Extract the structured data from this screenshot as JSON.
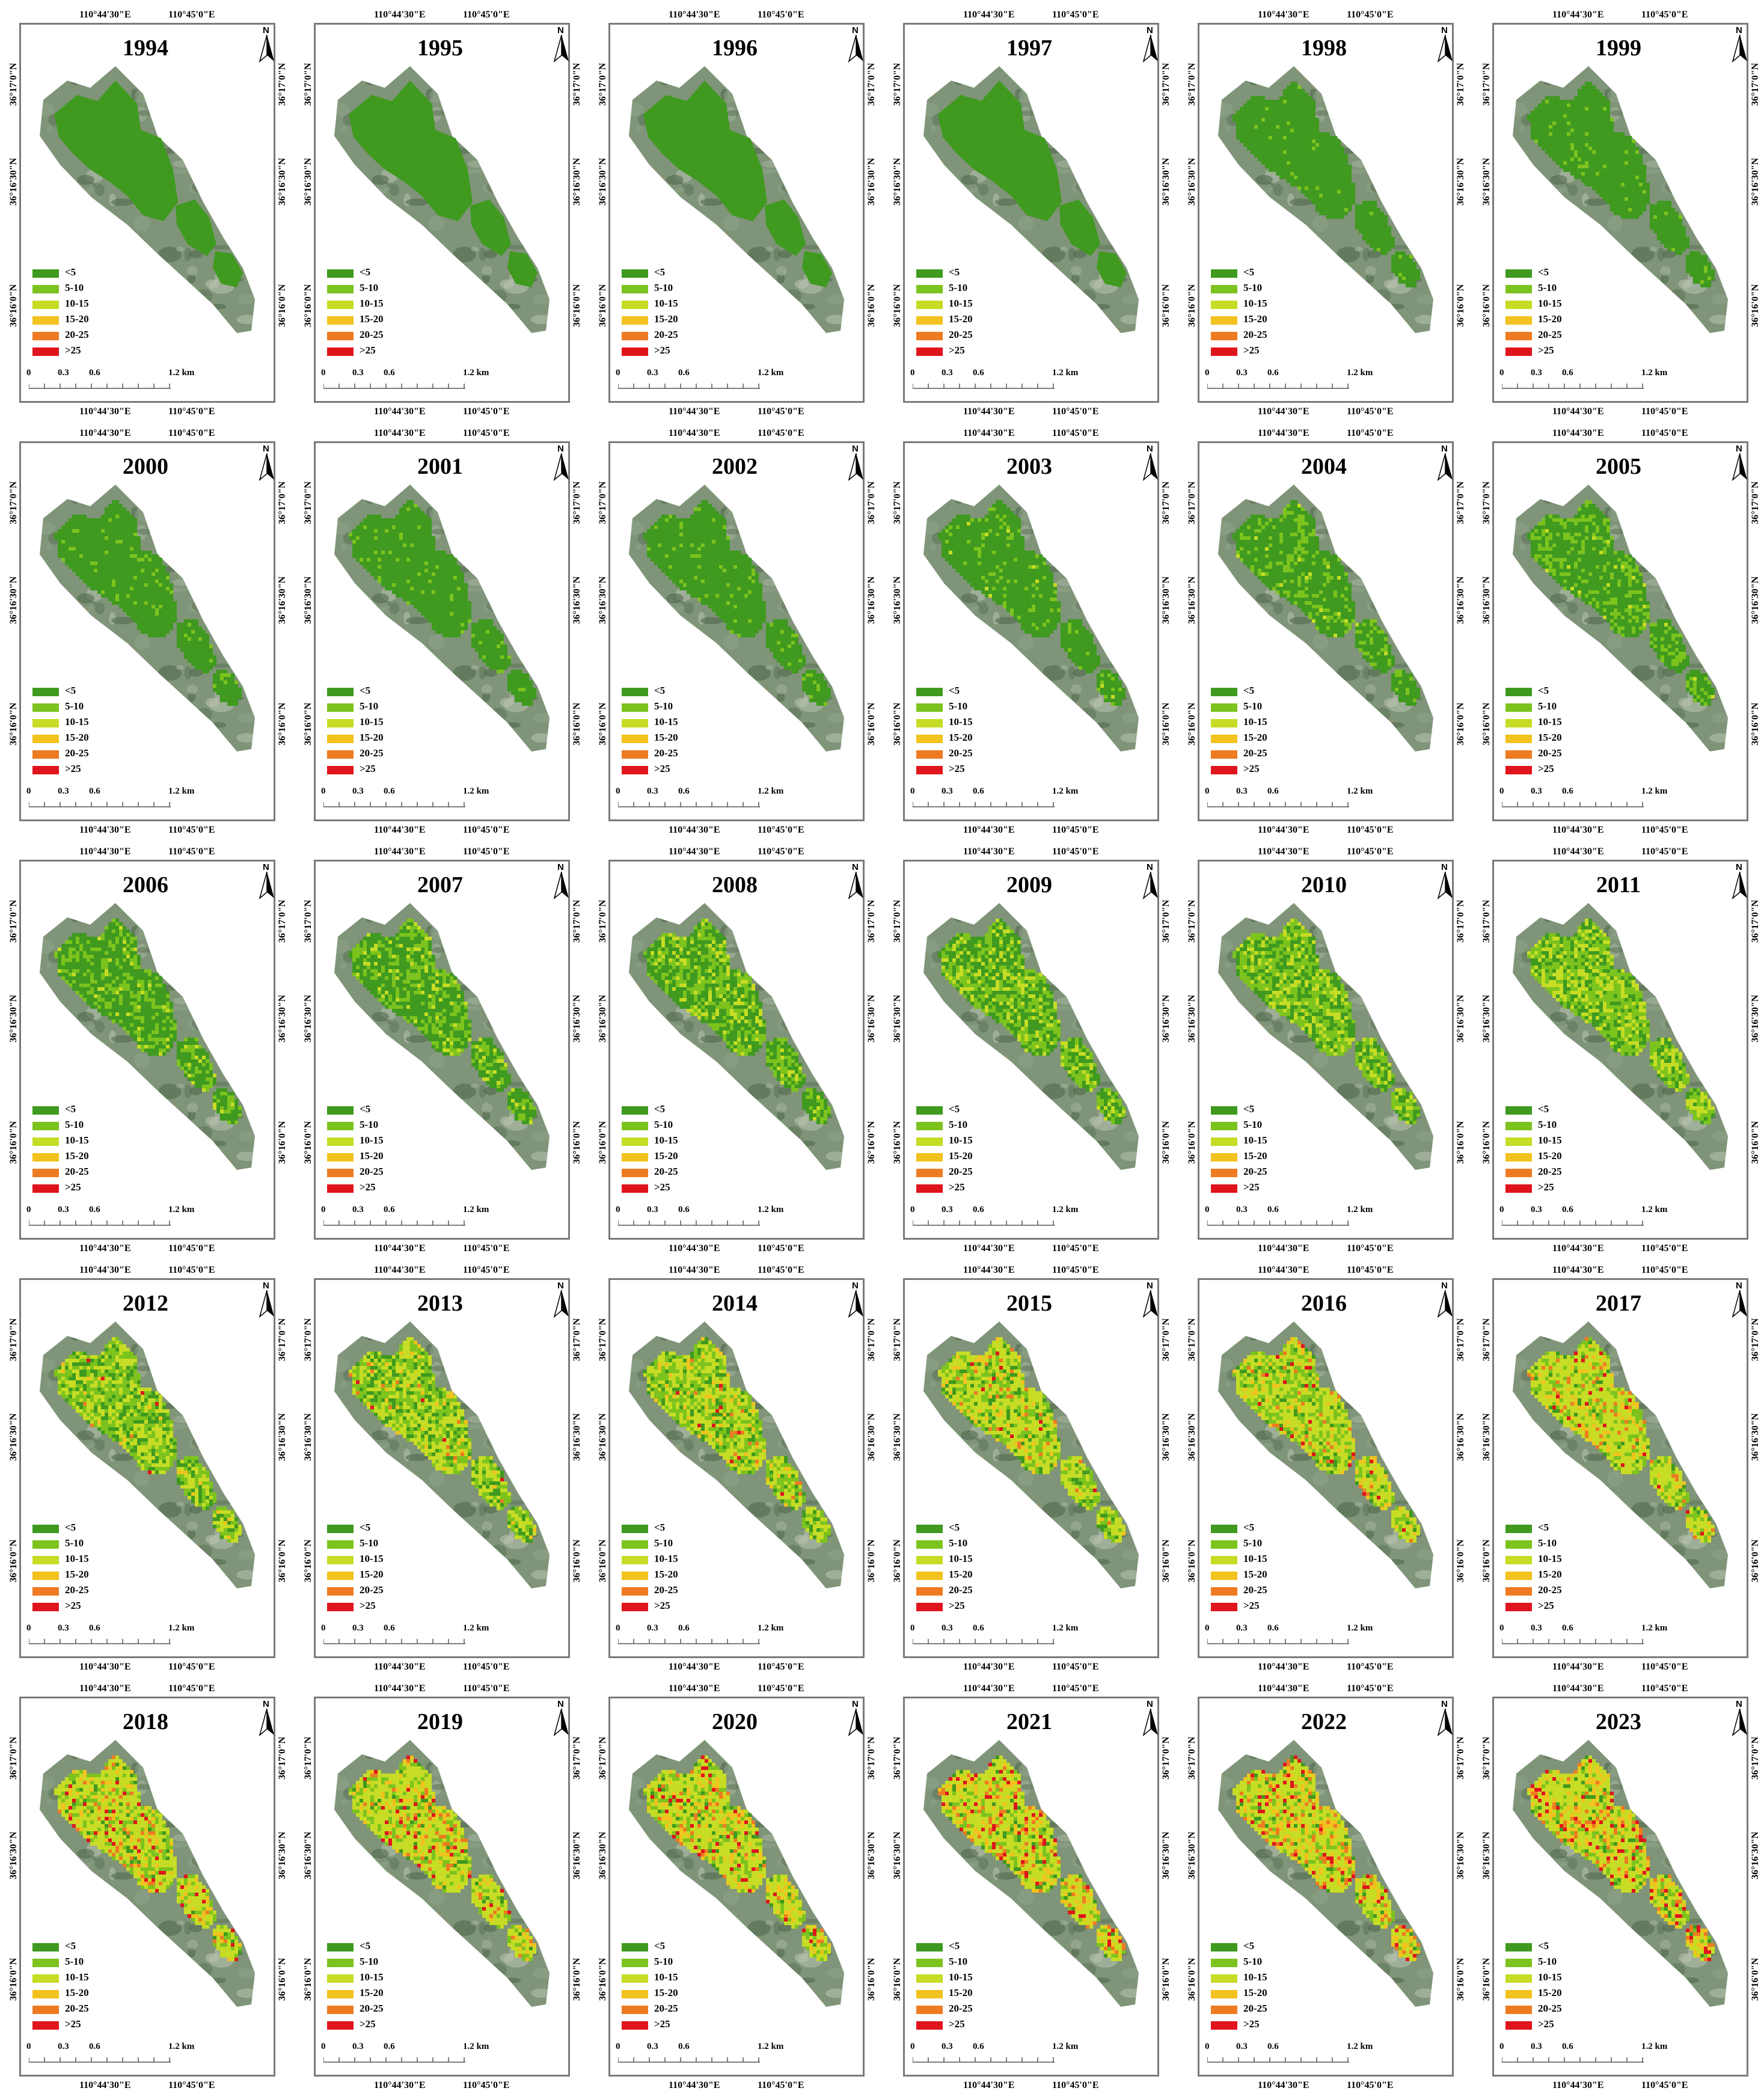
{
  "legend": {
    "entries": [
      {
        "label": "<5",
        "color": "#3f9a1f"
      },
      {
        "label": "5-10",
        "color": "#7cc31e"
      },
      {
        "label": "10-15",
        "color": "#c6dc25"
      },
      {
        "label": "15-20",
        "color": "#f2c21e"
      },
      {
        "label": "20-25",
        "color": "#ee7b21"
      },
      {
        "label": ">25",
        "color": "#e0141d"
      }
    ]
  },
  "coordinates": {
    "lon_left": "110°44'30\"E",
    "lon_right": "110°45'0\"E",
    "lat_top": "36°17'0\"N",
    "lat_mid": "36°16'30\"N",
    "lat_bottom": "36°16'0\"N"
  },
  "north_arrow": {
    "label": "N",
    "icon": "north-arrow-icon"
  },
  "scale_bar": {
    "ticks": [
      "0",
      "0.3",
      "0.6",
      "1.2 km"
    ],
    "unit": "km"
  },
  "panels": [
    {
      "year": "1994"
    },
    {
      "year": "1995"
    },
    {
      "year": "1996"
    },
    {
      "year": "1997"
    },
    {
      "year": "1998"
    },
    {
      "year": "1999"
    },
    {
      "year": "2000"
    },
    {
      "year": "2001"
    },
    {
      "year": "2002"
    },
    {
      "year": "2003"
    },
    {
      "year": "2004"
    },
    {
      "year": "2005"
    },
    {
      "year": "2006"
    },
    {
      "year": "2007"
    },
    {
      "year": "2008"
    },
    {
      "year": "2009"
    },
    {
      "year": "2010"
    },
    {
      "year": "2011"
    },
    {
      "year": "2012"
    },
    {
      "year": "2013"
    },
    {
      "year": "2014"
    },
    {
      "year": "2015"
    },
    {
      "year": "2016"
    },
    {
      "year": "2017"
    },
    {
      "year": "2018"
    },
    {
      "year": "2019"
    },
    {
      "year": "2020"
    },
    {
      "year": "2021"
    },
    {
      "year": "2022"
    },
    {
      "year": "2023"
    }
  ]
}
